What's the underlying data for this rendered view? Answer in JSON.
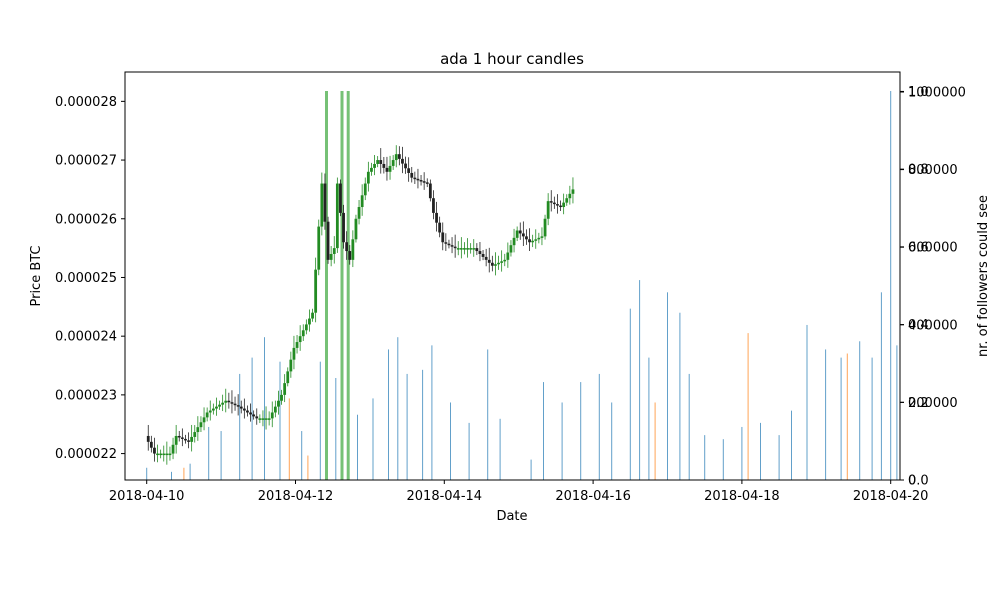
{
  "chart_data": {
    "type": "candlestick",
    "title": "ada 1 hour candles",
    "xlabel": "Date",
    "ylabel": "Price BTC",
    "ylabel_right": "nr. of followers could see",
    "x_range": [
      "2018-04-09T17:00",
      "2018-04-20T03:00"
    ],
    "y_range": [
      2.155e-05,
      2.85e-05
    ],
    "x_ticks": [
      "2018-04-10",
      "2018-04-12",
      "2018-04-14",
      "2018-04-16",
      "2018-04-18",
      "2018-04-20"
    ],
    "y_ticks": [
      "0.000022",
      "0.000023",
      "0.000024",
      "0.000025",
      "0.000026",
      "0.000027",
      "0.000028"
    ],
    "right_ticks_fraction": [
      "0.0",
      "0.2",
      "0.4",
      "0.6",
      "0.8",
      "1.0"
    ],
    "right_ticks_count": [
      "0",
      "200000",
      "400000",
      "600000",
      "800000",
      "1000000"
    ],
    "candle_colors": {
      "up": "#228b22",
      "down": "#222222",
      "volume_blue": "#1f77b4",
      "volume_orange": "#ff7f0e",
      "volume_green": "#2ca02c"
    },
    "candle_close_trace": [
      [
        "2018-04-10T00:00",
        2.23e-05
      ],
      [
        "2018-04-10T03:00",
        2.2e-05
      ],
      [
        "2018-04-10T08:00",
        2.2e-05
      ],
      [
        "2018-04-10T10:00",
        2.23e-05
      ],
      [
        "2018-04-10T14:00",
        2.22e-05
      ],
      [
        "2018-04-10T20:00",
        2.27e-05
      ],
      [
        "2018-04-11T02:00",
        2.29e-05
      ],
      [
        "2018-04-11T06:00",
        2.28e-05
      ],
      [
        "2018-04-11T12:00",
        2.26e-05
      ],
      [
        "2018-04-11T16:00",
        2.26e-05
      ],
      [
        "2018-04-11T20:00",
        2.3e-05
      ],
      [
        "2018-04-12T00:00",
        2.38e-05
      ],
      [
        "2018-04-12T03:00",
        2.41e-05
      ],
      [
        "2018-04-12T06:00",
        2.44e-05
      ],
      [
        "2018-04-12T09:00",
        2.66e-05
      ],
      [
        "2018-04-12T11:00",
        2.53e-05
      ],
      [
        "2018-04-12T13:00",
        2.55e-05
      ],
      [
        "2018-04-12T14:00",
        2.66e-05
      ],
      [
        "2018-04-12T16:00",
        2.56e-05
      ],
      [
        "2018-04-12T18:00",
        2.53e-05
      ],
      [
        "2018-04-12T20:00",
        2.6e-05
      ],
      [
        "2018-04-13T00:00",
        2.68e-05
      ],
      [
        "2018-04-13T03:00",
        2.7e-05
      ],
      [
        "2018-04-13T06:00",
        2.68e-05
      ],
      [
        "2018-04-13T09:00",
        2.71e-05
      ],
      [
        "2018-04-13T14:00",
        2.67e-05
      ],
      [
        "2018-04-13T19:00",
        2.66e-05
      ],
      [
        "2018-04-13T21:00",
        2.61e-05
      ],
      [
        "2018-04-14T00:00",
        2.56e-05
      ],
      [
        "2018-04-14T04:00",
        2.55e-05
      ],
      [
        "2018-04-14T10:00",
        2.55e-05
      ],
      [
        "2018-04-14T16:00",
        2.52e-05
      ],
      [
        "2018-04-14T20:00",
        2.53e-05
      ],
      [
        "2018-04-15T00:00",
        2.58e-05
      ],
      [
        "2018-04-15T04:00",
        2.56e-05
      ],
      [
        "2018-04-15T08:00",
        2.57e-05
      ],
      [
        "2018-04-15T10:00",
        2.63e-05
      ],
      [
        "2018-04-15T14:00",
        2.62e-05
      ],
      [
        "2018-04-15T18:00",
        2.65e-05
      ]
    ],
    "follower_bars": [
      [
        "2018-04-10T00:00",
        30000,
        "blue"
      ],
      [
        "2018-04-10T08:00",
        20000,
        "blue"
      ],
      [
        "2018-04-10T12:00",
        30000,
        "orange"
      ],
      [
        "2018-04-10T14:00",
        40000,
        "blue"
      ],
      [
        "2018-04-10T20:00",
        130000,
        "blue"
      ],
      [
        "2018-04-11T00:00",
        120000,
        "blue"
      ],
      [
        "2018-04-11T06:00",
        260000,
        "blue"
      ],
      [
        "2018-04-11T10:00",
        300000,
        "blue"
      ],
      [
        "2018-04-11T14:00",
        350000,
        "blue"
      ],
      [
        "2018-04-11T19:00",
        290000,
        "blue"
      ],
      [
        "2018-04-11T22:00",
        200000,
        "orange"
      ],
      [
        "2018-04-12T02:00",
        120000,
        "blue"
      ],
      [
        "2018-04-12T04:00",
        60000,
        "orange"
      ],
      [
        "2018-04-12T08:00",
        290000,
        "blue"
      ],
      [
        "2018-04-12T10:00",
        1000000,
        "green"
      ],
      [
        "2018-04-12T13:00",
        250000,
        "blue"
      ],
      [
        "2018-04-12T15:00",
        1000000,
        "green"
      ],
      [
        "2018-04-12T17:00",
        1000000,
        "green"
      ],
      [
        "2018-04-12T20:00",
        160000,
        "blue"
      ],
      [
        "2018-04-13T01:00",
        200000,
        "blue"
      ],
      [
        "2018-04-13T06:00",
        320000,
        "blue"
      ],
      [
        "2018-04-13T09:00",
        350000,
        "blue"
      ],
      [
        "2018-04-13T12:00",
        260000,
        "blue"
      ],
      [
        "2018-04-13T17:00",
        270000,
        "blue"
      ],
      [
        "2018-04-13T20:00",
        330000,
        "blue"
      ],
      [
        "2018-04-14T02:00",
        190000,
        "blue"
      ],
      [
        "2018-04-14T08:00",
        140000,
        "blue"
      ],
      [
        "2018-04-14T14:00",
        320000,
        "blue"
      ],
      [
        "2018-04-14T18:00",
        150000,
        "blue"
      ],
      [
        "2018-04-15T04:00",
        50000,
        "blue"
      ],
      [
        "2018-04-15T08:00",
        240000,
        "blue"
      ],
      [
        "2018-04-15T14:00",
        190000,
        "blue"
      ],
      [
        "2018-04-15T20:00",
        240000,
        "blue"
      ],
      [
        "2018-04-16T02:00",
        260000,
        "blue"
      ],
      [
        "2018-04-16T06:00",
        190000,
        "blue"
      ],
      [
        "2018-04-16T12:00",
        420000,
        "blue"
      ],
      [
        "2018-04-16T15:00",
        490000,
        "blue"
      ],
      [
        "2018-04-16T18:00",
        300000,
        "blue"
      ],
      [
        "2018-04-16T20:00",
        190000,
        "orange"
      ],
      [
        "2018-04-17T00:00",
        460000,
        "blue"
      ],
      [
        "2018-04-17T04:00",
        410000,
        "blue"
      ],
      [
        "2018-04-17T07:00",
        260000,
        "blue"
      ],
      [
        "2018-04-17T12:00",
        110000,
        "blue"
      ],
      [
        "2018-04-17T18:00",
        100000,
        "blue"
      ],
      [
        "2018-04-18T00:00",
        130000,
        "blue"
      ],
      [
        "2018-04-18T02:00",
        360000,
        "orange"
      ],
      [
        "2018-04-18T06:00",
        140000,
        "blue"
      ],
      [
        "2018-04-18T12:00",
        110000,
        "blue"
      ],
      [
        "2018-04-18T16:00",
        170000,
        "blue"
      ],
      [
        "2018-04-18T21:00",
        380000,
        "blue"
      ],
      [
        "2018-04-19T03:00",
        320000,
        "blue"
      ],
      [
        "2018-04-19T08:00",
        300000,
        "blue"
      ],
      [
        "2018-04-19T10:00",
        310000,
        "orange"
      ],
      [
        "2018-04-19T14:00",
        340000,
        "blue"
      ],
      [
        "2018-04-19T18:00",
        300000,
        "blue"
      ],
      [
        "2018-04-19T21:00",
        460000,
        "blue"
      ],
      [
        "2018-04-20T00:00",
        1000000,
        "blue"
      ],
      [
        "2018-04-20T02:00",
        330000,
        "blue"
      ]
    ]
  }
}
